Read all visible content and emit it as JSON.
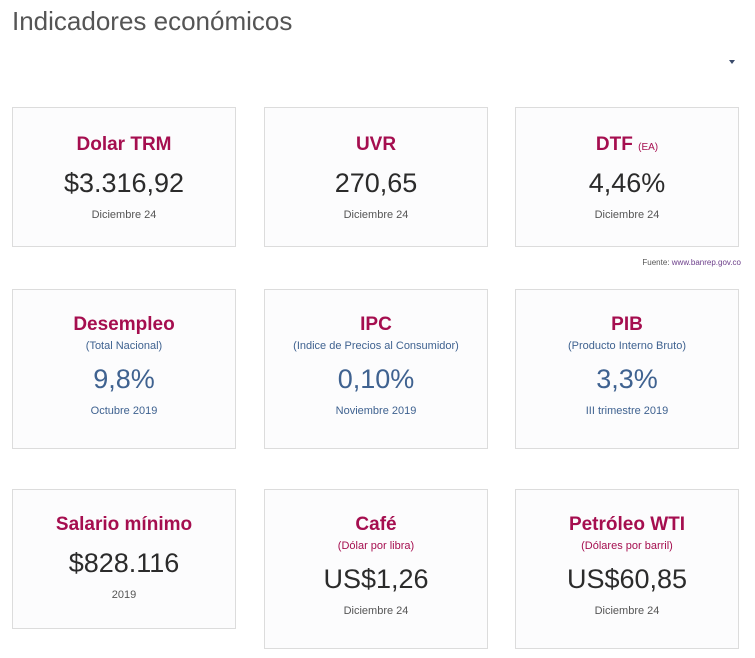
{
  "page": {
    "title": "Indicadores económicos",
    "source_label": "Fuente:",
    "source_link": "www.banrep.gov.co",
    "accent_color": "#a50e4f",
    "value_blue": "#3f6290"
  },
  "cards": [
    {
      "title": "Dolar TRM",
      "value": "$3.316,92",
      "date": "Diciembre 24"
    },
    {
      "title": "UVR",
      "value": "270,65",
      "date": "Diciembre 24"
    },
    {
      "title": "DTF",
      "suffix": "(EA)",
      "value": "4,46%",
      "date": "Diciembre 24"
    },
    {
      "title": "Desempleo",
      "subtitle": "(Total Nacional)",
      "value": "9,8%",
      "date": "Octubre 2019"
    },
    {
      "title": "IPC",
      "subtitle": "(Indice de Precios al Consumidor)",
      "value": "0,10%",
      "date": "Noviembre 2019"
    },
    {
      "title": "PIB",
      "subtitle": "(Producto Interno Bruto)",
      "value": "3,3%",
      "date": "III trimestre 2019"
    },
    {
      "title": "Salario mínimo",
      "value": "$828.116",
      "date": "2019"
    },
    {
      "title": "Café",
      "subtitle": "(Dólar por libra)",
      "value": "US$1,26",
      "date": "Diciembre 24"
    },
    {
      "title": "Petróleo WTI",
      "subtitle": "(Dólares por barril)",
      "value": "US$60,85",
      "date": "Diciembre 24"
    }
  ]
}
